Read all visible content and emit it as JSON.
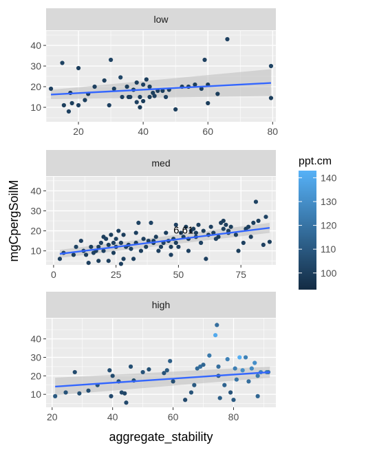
{
  "chart_data": {
    "type": "scatter",
    "xlabel": "aggregate_stability",
    "ylabel": "mgCpergSoilM",
    "colorbar": {
      "title": "ppt.cm",
      "ticks": [
        100,
        110,
        120,
        130,
        140
      ],
      "range": [
        93,
        143
      ],
      "low_color": "#132B43",
      "high_color": "#56B1F7"
    },
    "colors": {
      "panel_bg": "#EBEBEB",
      "strip_bg": "#D9D9D9",
      "grid": "#FFFFFF",
      "fit_line": "#3366FF",
      "ribbon": "#BEBEBE"
    },
    "panels": [
      {
        "strip": "low",
        "xlim": [
          10,
          81
        ],
        "ylim": [
          3,
          47
        ],
        "xticks": [
          20,
          40,
          60,
          80
        ],
        "yticks": [
          10,
          20,
          30,
          40
        ],
        "fit": {
          "x0": 11.5,
          "y0": 16.2,
          "x1": 79.5,
          "y1": 21.8,
          "se_lo": [
            14.0,
            15.5
          ],
          "se_hi": [
            18.5,
            28.5
          ]
        },
        "points": [
          {
            "x": 11.5,
            "y": 19,
            "ppt": 101
          },
          {
            "x": 15,
            "y": 31.5,
            "ppt": 102
          },
          {
            "x": 15.5,
            "y": 11,
            "ppt": 100
          },
          {
            "x": 17,
            "y": 8,
            "ppt": 101
          },
          {
            "x": 17.5,
            "y": 17,
            "ppt": 99
          },
          {
            "x": 18,
            "y": 12,
            "ppt": 100
          },
          {
            "x": 20,
            "y": 11,
            "ppt": 101
          },
          {
            "x": 20,
            "y": 29,
            "ppt": 100
          },
          {
            "x": 22,
            "y": 13.5,
            "ppt": 100
          },
          {
            "x": 23,
            "y": 16.5,
            "ppt": 99
          },
          {
            "x": 25,
            "y": 20,
            "ppt": 101
          },
          {
            "x": 28,
            "y": 23,
            "ppt": 100
          },
          {
            "x": 29.5,
            "y": 11,
            "ppt": 101
          },
          {
            "x": 30,
            "y": 33,
            "ppt": 102
          },
          {
            "x": 31,
            "y": 19,
            "ppt": 100
          },
          {
            "x": 33,
            "y": 24.5,
            "ppt": 103
          },
          {
            "x": 33.5,
            "y": 15,
            "ppt": 101
          },
          {
            "x": 35,
            "y": 20,
            "ppt": 100
          },
          {
            "x": 35.5,
            "y": 15,
            "ppt": 99
          },
          {
            "x": 36,
            "y": 15,
            "ppt": 100
          },
          {
            "x": 37,
            "y": 18.5,
            "ppt": 100
          },
          {
            "x": 38,
            "y": 22,
            "ppt": 100
          },
          {
            "x": 38,
            "y": 12.5,
            "ppt": 101
          },
          {
            "x": 39,
            "y": 15,
            "ppt": 100
          },
          {
            "x": 39,
            "y": 10,
            "ppt": 100
          },
          {
            "x": 40,
            "y": 13,
            "ppt": 100
          },
          {
            "x": 40,
            "y": 21,
            "ppt": 101
          },
          {
            "x": 41,
            "y": 23.5,
            "ppt": 100
          },
          {
            "x": 42,
            "y": 15,
            "ppt": 100
          },
          {
            "x": 42,
            "y": 20,
            "ppt": 100
          },
          {
            "x": 43,
            "y": 17,
            "ppt": 100
          },
          {
            "x": 43.5,
            "y": 15.5,
            "ppt": 101
          },
          {
            "x": 44.5,
            "y": 18,
            "ppt": 100
          },
          {
            "x": 46,
            "y": 18,
            "ppt": 100
          },
          {
            "x": 47,
            "y": 15,
            "ppt": 101
          },
          {
            "x": 48,
            "y": 18.5,
            "ppt": 100
          },
          {
            "x": 50,
            "y": 9,
            "ppt": 100
          },
          {
            "x": 52,
            "y": 20,
            "ppt": 101
          },
          {
            "x": 54,
            "y": 20,
            "ppt": 100
          },
          {
            "x": 56,
            "y": 21,
            "ppt": 100
          },
          {
            "x": 58,
            "y": 19,
            "ppt": 100
          },
          {
            "x": 59,
            "y": 33,
            "ppt": 101
          },
          {
            "x": 60,
            "y": 21,
            "ppt": 100
          },
          {
            "x": 60,
            "y": 12,
            "ppt": 100
          },
          {
            "x": 63,
            "y": 16.5,
            "ppt": 100
          },
          {
            "x": 66,
            "y": 43,
            "ppt": 101
          },
          {
            "x": 79.5,
            "y": 30,
            "ppt": 102
          },
          {
            "x": 79.5,
            "y": 14.5,
            "ppt": 100
          }
        ]
      },
      {
        "strip": "med",
        "xlim": [
          -3,
          89
        ],
        "ylim": [
          3,
          47
        ],
        "xticks": [
          0,
          25,
          50,
          75
        ],
        "yticks": [
          10,
          20,
          30,
          40
        ],
        "annotation": {
          "text": "6.61",
          "x": 48,
          "y": 20
        },
        "fit": {
          "x0": 2.5,
          "y0": 8.5,
          "x1": 86.5,
          "y1": 21.5,
          "se_lo": [
            6.5,
            19.0
          ],
          "se_hi": [
            10.5,
            24.0
          ]
        },
        "points": [
          {
            "x": 2.5,
            "y": 6,
            "ppt": 101
          },
          {
            "x": 4,
            "y": 9,
            "ppt": 101
          },
          {
            "x": 8,
            "y": 8,
            "ppt": 100
          },
          {
            "x": 9,
            "y": 12,
            "ppt": 102
          },
          {
            "x": 11,
            "y": 15,
            "ppt": 101
          },
          {
            "x": 12,
            "y": 10,
            "ppt": 101
          },
          {
            "x": 13,
            "y": 8,
            "ppt": 100
          },
          {
            "x": 14,
            "y": 4,
            "ppt": 101
          },
          {
            "x": 15,
            "y": 12,
            "ppt": 100
          },
          {
            "x": 16,
            "y": 9,
            "ppt": 101
          },
          {
            "x": 17,
            "y": 10,
            "ppt": 100
          },
          {
            "x": 18,
            "y": 12,
            "ppt": 101
          },
          {
            "x": 18,
            "y": 5,
            "ppt": 100
          },
          {
            "x": 19,
            "y": 14,
            "ppt": 101
          },
          {
            "x": 20,
            "y": 17,
            "ppt": 100
          },
          {
            "x": 20,
            "y": 10,
            "ppt": 101
          },
          {
            "x": 21,
            "y": 16,
            "ppt": 101
          },
          {
            "x": 22,
            "y": 13,
            "ppt": 100
          },
          {
            "x": 22,
            "y": 5,
            "ppt": 101
          },
          {
            "x": 23,
            "y": 18,
            "ppt": 100
          },
          {
            "x": 24,
            "y": 14,
            "ppt": 101
          },
          {
            "x": 24,
            "y": 9,
            "ppt": 100
          },
          {
            "x": 25,
            "y": 16,
            "ppt": 102
          },
          {
            "x": 25,
            "y": 12,
            "ppt": 101
          },
          {
            "x": 26,
            "y": 20,
            "ppt": 101
          },
          {
            "x": 27,
            "y": 14,
            "ppt": 100
          },
          {
            "x": 27,
            "y": 3.5,
            "ppt": 101
          },
          {
            "x": 28,
            "y": 18,
            "ppt": 100
          },
          {
            "x": 28,
            "y": 6,
            "ppt": 101
          },
          {
            "x": 29,
            "y": 12,
            "ppt": 101
          },
          {
            "x": 30,
            "y": 13,
            "ppt": 100
          },
          {
            "x": 31,
            "y": 11,
            "ppt": 101
          },
          {
            "x": 32,
            "y": 6,
            "ppt": 101
          },
          {
            "x": 33,
            "y": 14,
            "ppt": 100
          },
          {
            "x": 33,
            "y": 19,
            "ppt": 101
          },
          {
            "x": 34,
            "y": 24,
            "ppt": 102
          },
          {
            "x": 35,
            "y": 10,
            "ppt": 100
          },
          {
            "x": 36,
            "y": 16,
            "ppt": 101
          },
          {
            "x": 37,
            "y": 12,
            "ppt": 100
          },
          {
            "x": 38,
            "y": 15,
            "ppt": 101
          },
          {
            "x": 39,
            "y": 24,
            "ppt": 102
          },
          {
            "x": 40,
            "y": 15,
            "ppt": 101
          },
          {
            "x": 40,
            "y": 14,
            "ppt": 100
          },
          {
            "x": 41,
            "y": 17,
            "ppt": 100
          },
          {
            "x": 42,
            "y": 10,
            "ppt": 101
          },
          {
            "x": 43,
            "y": 12,
            "ppt": 100
          },
          {
            "x": 44,
            "y": 14,
            "ppt": 101
          },
          {
            "x": 45,
            "y": 19,
            "ppt": 100
          },
          {
            "x": 46,
            "y": 15,
            "ppt": 101
          },
          {
            "x": 47,
            "y": 12,
            "ppt": 100
          },
          {
            "x": 47,
            "y": 8,
            "ppt": 101
          },
          {
            "x": 48,
            "y": 16,
            "ppt": 101
          },
          {
            "x": 49,
            "y": 14,
            "ppt": 100
          },
          {
            "x": 49,
            "y": 23,
            "ppt": 101
          },
          {
            "x": 50,
            "y": 12,
            "ppt": 101
          },
          {
            "x": 51,
            "y": 19,
            "ppt": 100
          },
          {
            "x": 52,
            "y": 17,
            "ppt": 101
          },
          {
            "x": 53,
            "y": 22,
            "ppt": 100
          },
          {
            "x": 54,
            "y": 10,
            "ppt": 101
          },
          {
            "x": 54,
            "y": 16,
            "ppt": 100
          },
          {
            "x": 55,
            "y": 20,
            "ppt": 101
          },
          {
            "x": 56,
            "y": 21,
            "ppt": 100
          },
          {
            "x": 57,
            "y": 17,
            "ppt": 101
          },
          {
            "x": 57,
            "y": 19,
            "ppt": 100
          },
          {
            "x": 58,
            "y": 23,
            "ppt": 101
          },
          {
            "x": 59,
            "y": 14,
            "ppt": 101
          },
          {
            "x": 60,
            "y": 20,
            "ppt": 100
          },
          {
            "x": 61,
            "y": 6,
            "ppt": 101
          },
          {
            "x": 62,
            "y": 18,
            "ppt": 100
          },
          {
            "x": 63,
            "y": 22,
            "ppt": 101
          },
          {
            "x": 64,
            "y": 19,
            "ppt": 100
          },
          {
            "x": 65,
            "y": 16,
            "ppt": 101
          },
          {
            "x": 66,
            "y": 17,
            "ppt": 100
          },
          {
            "x": 67,
            "y": 24,
            "ppt": 101
          },
          {
            "x": 68,
            "y": 25,
            "ppt": 100
          },
          {
            "x": 68,
            "y": 21,
            "ppt": 102
          },
          {
            "x": 69,
            "y": 23,
            "ppt": 101
          },
          {
            "x": 70,
            "y": 20,
            "ppt": 100
          },
          {
            "x": 70,
            "y": 19,
            "ppt": 101
          },
          {
            "x": 71,
            "y": 22,
            "ppt": 100
          },
          {
            "x": 73,
            "y": 18,
            "ppt": 101
          },
          {
            "x": 74,
            "y": 10,
            "ppt": 100
          },
          {
            "x": 76,
            "y": 14,
            "ppt": 101
          },
          {
            "x": 77,
            "y": 21,
            "ppt": 100
          },
          {
            "x": 78,
            "y": 22,
            "ppt": 101
          },
          {
            "x": 79,
            "y": 17,
            "ppt": 101
          },
          {
            "x": 80,
            "y": 24,
            "ppt": 100
          },
          {
            "x": 81,
            "y": 34.5,
            "ppt": 102
          },
          {
            "x": 82,
            "y": 25,
            "ppt": 100
          },
          {
            "x": 84,
            "y": 13,
            "ppt": 101
          },
          {
            "x": 85,
            "y": 27,
            "ppt": 102
          },
          {
            "x": 86.5,
            "y": 14.5,
            "ppt": 100
          }
        ]
      },
      {
        "strip": "high",
        "xlim": [
          18,
          94
        ],
        "ylim": [
          3,
          51
        ],
        "xticks": [
          20,
          40,
          60,
          80
        ],
        "yticks": [
          10,
          20,
          30,
          40
        ],
        "fit": {
          "x0": 21,
          "y0": 14.2,
          "x1": 92,
          "y1": 22.0,
          "se_lo": [
            9.5,
            19.0
          ],
          "se_hi": [
            19.0,
            25.0
          ]
        },
        "points": [
          {
            "x": 21,
            "y": 9,
            "ppt": 110
          },
          {
            "x": 24.5,
            "y": 11,
            "ppt": 108
          },
          {
            "x": 27.5,
            "y": 22,
            "ppt": 105
          },
          {
            "x": 29,
            "y": 10.5,
            "ppt": 107
          },
          {
            "x": 32,
            "y": 12,
            "ppt": 106
          },
          {
            "x": 35,
            "y": 15,
            "ppt": 108
          },
          {
            "x": 39,
            "y": 23,
            "ppt": 106
          },
          {
            "x": 39.5,
            "y": 9,
            "ppt": 104
          },
          {
            "x": 40,
            "y": 20,
            "ppt": 105
          },
          {
            "x": 42,
            "y": 17,
            "ppt": 107
          },
          {
            "x": 43,
            "y": 11,
            "ppt": 104
          },
          {
            "x": 44,
            "y": 10.5,
            "ppt": 103
          },
          {
            "x": 44.5,
            "y": 5.5,
            "ppt": 104
          },
          {
            "x": 46,
            "y": 25,
            "ppt": 106
          },
          {
            "x": 47,
            "y": 17.5,
            "ppt": 105
          },
          {
            "x": 50,
            "y": 22,
            "ppt": 108
          },
          {
            "x": 52,
            "y": 23.5,
            "ppt": 107
          },
          {
            "x": 57,
            "y": 21.5,
            "ppt": 108
          },
          {
            "x": 58,
            "y": 23,
            "ppt": 110
          },
          {
            "x": 59,
            "y": 28,
            "ppt": 112
          },
          {
            "x": 60,
            "y": 17,
            "ppt": 106
          },
          {
            "x": 64,
            "y": 7,
            "ppt": 104
          },
          {
            "x": 66,
            "y": 11,
            "ppt": 108
          },
          {
            "x": 67,
            "y": 15,
            "ppt": 110
          },
          {
            "x": 68,
            "y": 24,
            "ppt": 116
          },
          {
            "x": 69,
            "y": 25,
            "ppt": 118
          },
          {
            "x": 70,
            "y": 26,
            "ppt": 115
          },
          {
            "x": 72,
            "y": 31,
            "ppt": 122
          },
          {
            "x": 74,
            "y": 42,
            "ppt": 140
          },
          {
            "x": 74.5,
            "y": 47.5,
            "ppt": 118
          },
          {
            "x": 75,
            "y": 25,
            "ppt": 118
          },
          {
            "x": 75,
            "y": 20,
            "ppt": 110
          },
          {
            "x": 75.5,
            "y": 8,
            "ppt": 112
          },
          {
            "x": 77,
            "y": 15,
            "ppt": 114
          },
          {
            "x": 78,
            "y": 29,
            "ppt": 125
          },
          {
            "x": 79,
            "y": 11,
            "ppt": 108
          },
          {
            "x": 80,
            "y": 7,
            "ppt": 110
          },
          {
            "x": 80.5,
            "y": 24,
            "ppt": 124
          },
          {
            "x": 81,
            "y": 18,
            "ppt": 120
          },
          {
            "x": 82,
            "y": 30,
            "ppt": 142
          },
          {
            "x": 83,
            "y": 23,
            "ppt": 130
          },
          {
            "x": 84,
            "y": 30,
            "ppt": 125
          },
          {
            "x": 85,
            "y": 17,
            "ppt": 118
          },
          {
            "x": 86,
            "y": 24,
            "ppt": 128
          },
          {
            "x": 87,
            "y": 27,
            "ppt": 130
          },
          {
            "x": 88,
            "y": 20,
            "ppt": 122
          },
          {
            "x": 88,
            "y": 9,
            "ppt": 115
          },
          {
            "x": 89,
            "y": 22,
            "ppt": 126
          },
          {
            "x": 91,
            "y": 22,
            "ppt": 124
          },
          {
            "x": 91.5,
            "y": 22,
            "ppt": 120
          }
        ]
      }
    ]
  }
}
